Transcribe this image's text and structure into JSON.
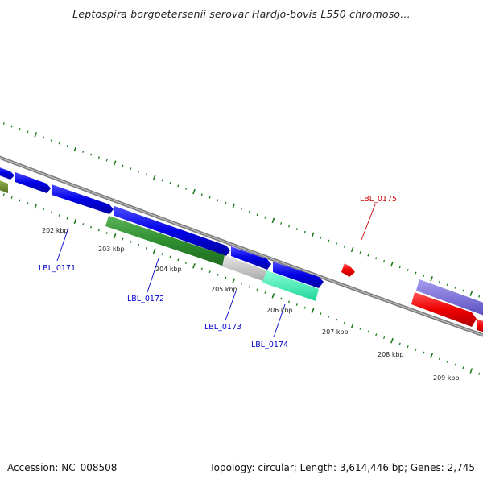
{
  "title": "Leptospira borgpetersenii serovar Hardjo-bovis L550 chromoso...",
  "footer": {
    "accession": "Accession: NC_008508",
    "summary": "Topology: circular; Length: 3,614,446 bp; Genes: 2,745"
  },
  "colors": {
    "backbone": "#8a8a8a",
    "tick": "#1a7a1a",
    "blue_gene": "#0000e6",
    "green_gene": "#2f8f2f",
    "olive_gene": "#6b8e23",
    "gray_gene": "#c8c8c8",
    "cyan_gene": "#33f5b5",
    "red_gene": "#ee0000",
    "purple_gene": "#7b6fd6",
    "label_blue": "#0000cc",
    "label_red": "#cc0000"
  },
  "kbp_ticks": [
    {
      "id": "202",
      "text": "202 kbp"
    },
    {
      "id": "203",
      "text": "203 kbp"
    },
    {
      "id": "204",
      "text": "204 kbp"
    },
    {
      "id": "205",
      "text": "205 kbp"
    },
    {
      "id": "206",
      "text": "206 kbp"
    },
    {
      "id": "207",
      "text": "207 kbp"
    },
    {
      "id": "208",
      "text": "208 kbp"
    },
    {
      "id": "209",
      "text": "209 kbp"
    }
  ],
  "gene_labels": [
    {
      "id": "0171",
      "text": "LBL_0171"
    },
    {
      "id": "0172",
      "text": "LBL_0172"
    },
    {
      "id": "0173",
      "text": "LBL_0173"
    },
    {
      "id": "0174",
      "text": "LBL_0174"
    },
    {
      "id": "0175",
      "text": "LBL_0175"
    }
  ]
}
